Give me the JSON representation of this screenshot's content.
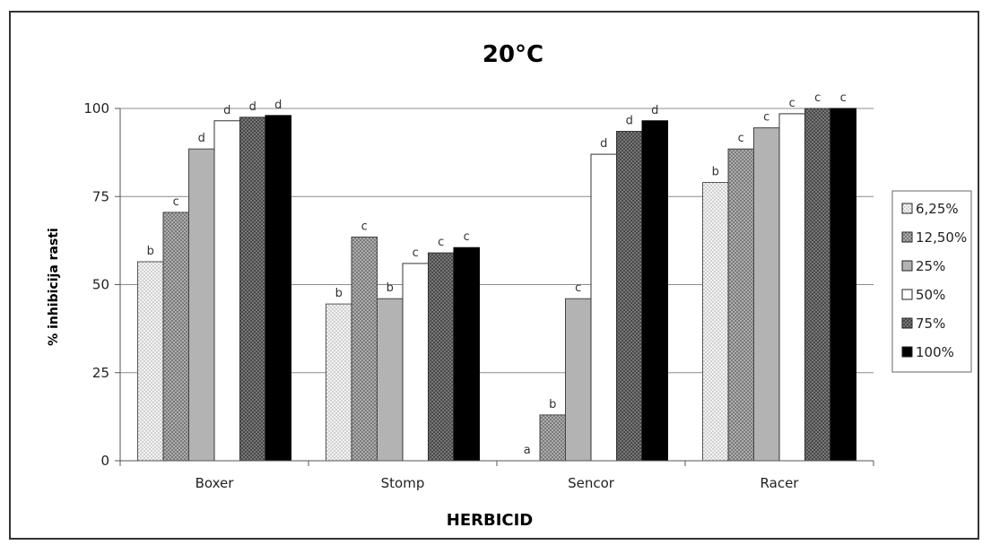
{
  "chart_data": {
    "type": "bar",
    "title": "20°C",
    "xlabel": "HERBICID",
    "ylabel": "% inhibicija rasti",
    "ylim": [
      0,
      100
    ],
    "yticks": [
      0,
      25,
      50,
      75,
      100
    ],
    "grid": true,
    "legend_position": "right",
    "categories": [
      "Boxer",
      "Stomp",
      "Sencor",
      "Racer"
    ],
    "series": [
      {
        "name": "6,25%",
        "values": [
          56.5,
          44.5,
          0,
          79
        ],
        "letters": [
          "b",
          "b",
          "a",
          "b"
        ],
        "fill": "dots"
      },
      {
        "name": "12,50%",
        "values": [
          70.5,
          63.5,
          13,
          88.5
        ],
        "letters": [
          "c",
          "c",
          "b",
          "c"
        ],
        "fill": "cross"
      },
      {
        "name": "25%",
        "values": [
          88.5,
          46,
          46,
          94.5
        ],
        "letters": [
          "d",
          "b",
          "c",
          "c"
        ],
        "fill": "gray"
      },
      {
        "name": "50%",
        "values": [
          96.5,
          56,
          87,
          98.5
        ],
        "letters": [
          "d",
          "c",
          "d",
          "c"
        ],
        "fill": "white"
      },
      {
        "name": "75%",
        "values": [
          97.5,
          59,
          93.5,
          100
        ],
        "letters": [
          "d",
          "c",
          "d",
          "c"
        ],
        "fill": "darkcross"
      },
      {
        "name": "100%",
        "values": [
          98,
          60.5,
          96.5,
          100
        ],
        "letters": [
          "d",
          "c",
          "d",
          "c"
        ],
        "fill": "black"
      }
    ]
  }
}
